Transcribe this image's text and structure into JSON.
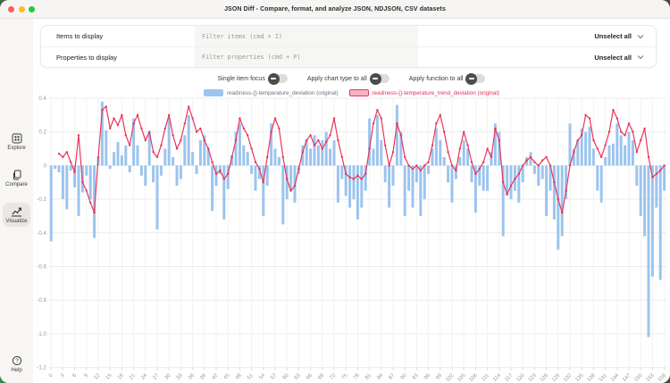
{
  "window": {
    "title": "JSON Diff - Compare, format, and analyze JSON, NDJSON, CSV datasets"
  },
  "filters": {
    "items_row": {
      "label": "Items to display",
      "placeholder": "Filter items (cmd + I)",
      "action": "Unselect all"
    },
    "properties_row": {
      "label": "Properties to display",
      "placeholder": "Filter properties (cmd + P)",
      "action": "Unselect all"
    }
  },
  "toggles": [
    {
      "label": "Single item focus",
      "state": "off"
    },
    {
      "label": "Apply chart type to all",
      "state": "off"
    },
    {
      "label": "Apply function to all",
      "state": "off"
    }
  ],
  "sidebar": {
    "items": [
      {
        "label": "Explore",
        "active": false
      },
      {
        "label": "Compare",
        "active": false
      },
      {
        "label": "Visualize",
        "active": true
      }
    ],
    "help": {
      "label": "Help"
    }
  },
  "colors": {
    "bar": "#9cc4ee",
    "line": "#e8365a",
    "grid": "#ececec",
    "grid_vertical": "#f3f3f2",
    "axis_text": "#9a9a9a"
  },
  "chart_data": {
    "type": "bar",
    "title": "",
    "xlabel": "",
    "ylabel": "",
    "ylim": [
      -1.2,
      0.4
    ],
    "yticks": [
      0.4,
      0.2,
      0,
      -0.2,
      -0.4,
      -0.6,
      -0.8,
      -1.0,
      -1.2
    ],
    "ytick_labels": [
      "0.4",
      "0.2",
      "0",
      "-0.2",
      "-0.4",
      "-0.6",
      "-0.8",
      "-1.0",
      "-1.2"
    ],
    "n_points": 157,
    "xticks": [
      0,
      3,
      6,
      9,
      12,
      15,
      18,
      21,
      24,
      27,
      30,
      33,
      36,
      39,
      42,
      45,
      48,
      51,
      54,
      57,
      60,
      63,
      66,
      69,
      72,
      75,
      78,
      81,
      84,
      87,
      90,
      93,
      96,
      99,
      102,
      105,
      108,
      111,
      114,
      117,
      120,
      123,
      126,
      129,
      132,
      135,
      138,
      141,
      144,
      147,
      150,
      153,
      156
    ],
    "grid": true,
    "legend_position": "top",
    "series": [
      {
        "name": "readiness-{}-temperature_deviation (original)",
        "type": "bar",
        "color": "#9cc4ee",
        "values": [
          -0.45,
          -0.02,
          -0.04,
          -0.2,
          -0.26,
          -0.03,
          -0.13,
          -0.3,
          -0.16,
          -0.06,
          -0.2,
          -0.43,
          0.05,
          0.38,
          0.21,
          -0.02,
          0.08,
          0.14,
          0.06,
          0.12,
          -0.04,
          0.28,
          0.12,
          -0.06,
          -0.12,
          0.2,
          -0.1,
          -0.38,
          -0.06,
          0.1,
          0.28,
          0.05,
          -0.12,
          -0.08,
          0.18,
          0.3,
          0.08,
          -0.05,
          0.15,
          0.18,
          0.1,
          -0.27,
          -0.12,
          -0.05,
          -0.32,
          -0.14,
          0.06,
          0.2,
          0.25,
          0.12,
          0.08,
          -0.05,
          -0.15,
          -0.08,
          -0.3,
          -0.12,
          0.25,
          0.1,
          0.05,
          -0.35,
          -0.2,
          -0.15,
          -0.22,
          -0.05,
          0.12,
          0.15,
          0.1,
          0.18,
          0.12,
          0.15,
          0.2,
          0.1,
          0.15,
          -0.22,
          -0.08,
          -0.18,
          -0.25,
          -0.2,
          -0.32,
          -0.25,
          -0.15,
          0.28,
          0.1,
          0.3,
          0.15,
          -0.1,
          -0.25,
          -0.12,
          0.36,
          0.2,
          -0.3,
          -0.15,
          -0.25,
          -0.1,
          -0.3,
          -0.2,
          -0.05,
          0.1,
          0.22,
          0.15,
          0.05,
          -0.1,
          -0.22,
          -0.08,
          0.05,
          0.15,
          0.1,
          -0.1,
          -0.28,
          -0.12,
          -0.15,
          -0.15,
          0.08,
          0.25,
          0.2,
          -0.42,
          -0.18,
          -0.2,
          -0.15,
          -0.22,
          -0.1,
          0.05,
          0.08,
          -0.05,
          -0.12,
          -0.08,
          -0.3,
          -0.15,
          -0.32,
          -0.5,
          -0.42,
          -0.2,
          0.25,
          0.1,
          0.15,
          0.22,
          0.2,
          0.23,
          0.1,
          -0.15,
          -0.22,
          0.05,
          0.12,
          0.13,
          0.25,
          0.18,
          0.12,
          0.2,
          0.15,
          -0.12,
          -0.3,
          -0.42,
          -1.02,
          -0.66,
          -0.25,
          -0.68,
          -0.15
        ]
      },
      {
        "name": "readiness-{}-temperature_trend_deviation (original)",
        "type": "line",
        "color": "#e8365a",
        "values": [
          null,
          null,
          0.07,
          0.05,
          0.08,
          0.02,
          -0.04,
          0.18,
          -0.1,
          -0.15,
          -0.22,
          -0.28,
          0.05,
          0.33,
          0.35,
          0.22,
          0.28,
          0.24,
          0.3,
          0.18,
          0.12,
          0.25,
          0.3,
          0.22,
          0.15,
          0.2,
          0.08,
          0.05,
          0.12,
          0.22,
          0.3,
          0.18,
          0.1,
          0.15,
          0.25,
          0.35,
          0.28,
          0.2,
          0.22,
          0.15,
          0.1,
          0.02,
          -0.05,
          -0.03,
          -0.08,
          -0.05,
          0.05,
          0.15,
          0.28,
          0.22,
          0.18,
          0.1,
          0.02,
          -0.02,
          -0.1,
          0.05,
          0.2,
          0.28,
          0.22,
          0.05,
          -0.08,
          -0.15,
          -0.12,
          -0.02,
          0.08,
          0.15,
          0.18,
          0.12,
          0.15,
          0.1,
          0.14,
          0.18,
          0.28,
          0.15,
          0.05,
          -0.05,
          -0.07,
          -0.08,
          -0.06,
          -0.08,
          -0.05,
          0.1,
          0.25,
          0.33,
          0.28,
          0.12,
          0.0,
          0.08,
          0.25,
          0.18,
          0.05,
          0.0,
          -0.02,
          0.0,
          -0.03,
          0.0,
          0.02,
          0.12,
          0.25,
          0.3,
          0.2,
          0.08,
          0.0,
          -0.03,
          0.1,
          0.2,
          0.12,
          0.02,
          -0.05,
          -0.02,
          0.02,
          0.1,
          0.05,
          0.22,
          0.15,
          -0.1,
          -0.17,
          -0.12,
          -0.08,
          -0.05,
          0.0,
          0.03,
          0.05,
          0.02,
          0.0,
          0.03,
          0.05,
          0.0,
          -0.1,
          -0.2,
          -0.28,
          -0.15,
          0.0,
          0.08,
          0.15,
          0.18,
          0.3,
          0.28,
          0.15,
          0.1,
          0.05,
          0.12,
          0.2,
          0.33,
          0.28,
          0.2,
          0.18,
          0.25,
          0.2,
          0.08,
          0.15,
          0.22,
          0.05,
          -0.07,
          -0.05,
          -0.03,
          0.0
        ]
      }
    ]
  }
}
